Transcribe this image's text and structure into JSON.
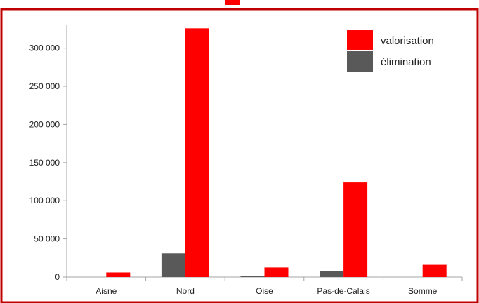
{
  "chart_data": {
    "type": "bar",
    "categories": [
      "Aisne",
      "Nord",
      "Oise",
      "Pas-de-Calais",
      "Somme"
    ],
    "series": [
      {
        "name": "élimination",
        "color": "#595959",
        "values": [
          0,
          31000,
          1500,
          8000,
          0
        ]
      },
      {
        "name": "valorisation",
        "color": "#ff0000",
        "values": [
          6000,
          326000,
          12500,
          124000,
          16000
        ]
      }
    ],
    "ylim": [
      0,
      330000
    ],
    "yticks": [
      {
        "value": 0,
        "label": "0"
      },
      {
        "value": 50000,
        "label": "50 000"
      },
      {
        "value": 100000,
        "label": "100 000"
      },
      {
        "value": 150000,
        "label": "150 000"
      },
      {
        "value": 200000,
        "label": "200 000"
      },
      {
        "value": 250000,
        "label": "250 000"
      },
      {
        "value": 300000,
        "label": "300 000"
      }
    ],
    "legend": {
      "placement": "top-right",
      "items": [
        {
          "label": "valorisation",
          "color": "#ff0000"
        },
        {
          "label": "élimination",
          "color": "#595959"
        }
      ]
    },
    "grid": false,
    "frame_color": "#c00000",
    "title": ""
  }
}
